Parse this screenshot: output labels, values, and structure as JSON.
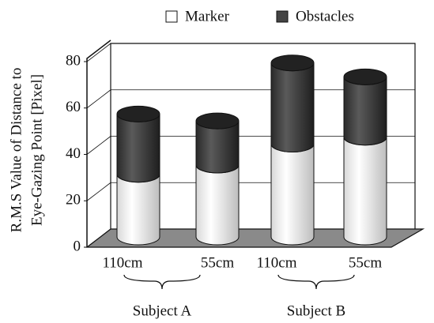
{
  "chart_data": {
    "type": "stacked_cylinder",
    "categories": [
      "110cm",
      "55cm",
      "110cm",
      "55cm"
    ],
    "groups": [
      "Subject A",
      "Subject B"
    ],
    "y_label": [
      "R.M.S Value of Distance to",
      "Eye-Gazing Point [Pixel]"
    ],
    "series": [
      {
        "name": "Marker",
        "color": "#f4f4f4",
        "values": [
          27,
          31,
          40,
          43
        ]
      },
      {
        "name": "Obstacles",
        "color": "#3a3a3a",
        "values": [
          26,
          19,
          35,
          26
        ]
      }
    ],
    "ylim": [
      0,
      80
    ],
    "yticks": [
      0,
      20,
      40,
      60,
      80
    ],
    "grid": true,
    "legend": "top"
  }
}
